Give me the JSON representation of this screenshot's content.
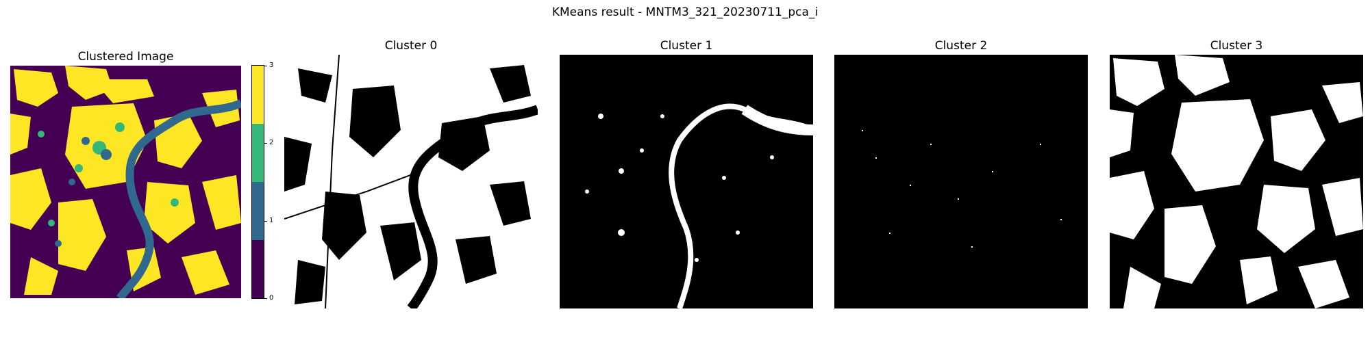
{
  "figure": {
    "suptitle": "KMeans result - MNTM3_321_20230711_pca_i"
  },
  "panels": [
    {
      "id": "clustered",
      "title": "Clustered Image"
    },
    {
      "id": "c0",
      "title": "Cluster 0"
    },
    {
      "id": "c1",
      "title": "Cluster 1"
    },
    {
      "id": "c2",
      "title": "Cluster 2"
    },
    {
      "id": "c3",
      "title": "Cluster 3"
    }
  ],
  "colorbar": {
    "ticks": [
      "0",
      "1",
      "2",
      "3"
    ],
    "colors": [
      "#440154",
      "#31688e",
      "#35b779",
      "#fde725"
    ]
  },
  "colors": {
    "cluster_mask_fg": "#ffffff",
    "cluster_mask_bg": "#000000"
  }
}
